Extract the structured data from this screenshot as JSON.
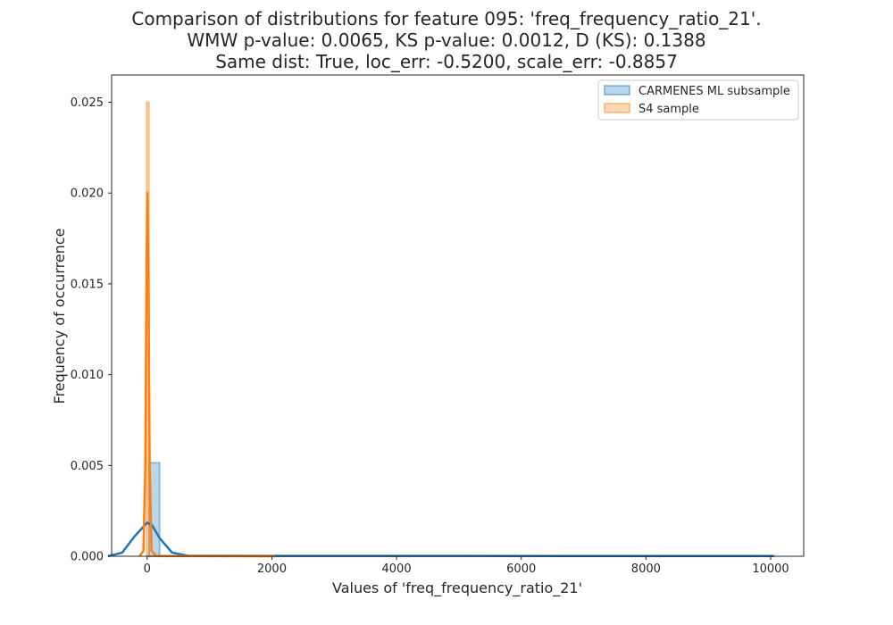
{
  "chart_data": {
    "type": "histogram",
    "title_lines": [
      "Comparison of distributions for feature 095: 'freq_frequency_ratio_21'.",
      "WMW p-value: 0.0065, KS p-value: 0.0012, D (KS): 0.1388",
      "Same dist: True, loc_err: -0.5200, scale_err: -0.8857"
    ],
    "xlabel": "Values of 'freq_frequency_ratio_21'",
    "ylabel": "Frequency of occurrence",
    "xlim": [
      -570,
      10530
    ],
    "ylim": [
      0,
      0.0265
    ],
    "xticks": [
      0,
      2000,
      4000,
      6000,
      8000,
      10000
    ],
    "xtick_labels": [
      "0",
      "2000",
      "4000",
      "6000",
      "8000",
      "10000"
    ],
    "yticks": [
      0,
      0.005,
      0.01,
      0.015,
      0.02,
      0.025
    ],
    "ytick_labels": [
      "0.000",
      "0.005",
      "0.010",
      "0.015",
      "0.020",
      "0.025"
    ],
    "grid": false,
    "legend_position": "top-right",
    "series": [
      {
        "name": "CARMENES ML subsample",
        "color": "#1f77b4",
        "hist_bins": [
          [
            30,
            200,
            0.00515
          ],
          [
            200,
            10050,
            3e-05
          ]
        ],
        "kde": [
          [
            -630,
            0
          ],
          [
            -400,
            0.0002
          ],
          [
            -200,
            0.0011
          ],
          [
            0,
            0.00185
          ],
          [
            80,
            0.0017
          ],
          [
            200,
            0.001
          ],
          [
            400,
            0.0002
          ],
          [
            650,
            3e-05
          ],
          [
            2000,
            2e-05
          ],
          [
            10050,
            1e-05
          ]
        ]
      },
      {
        "name": "S4 sample",
        "color": "#ff7f0e",
        "hist_bins": [
          [
            -10,
            30,
            0.025
          ],
          [
            30,
            2050,
            2e-05
          ]
        ],
        "kde": [
          [
            -120,
            0
          ],
          [
            -60,
            0.0003
          ],
          [
            -30,
            0.005
          ],
          [
            -10,
            0.016
          ],
          [
            5,
            0.02
          ],
          [
            20,
            0.016
          ],
          [
            40,
            0.005
          ],
          [
            70,
            0.0003
          ],
          [
            150,
            1e-05
          ],
          [
            2050,
            0
          ]
        ]
      }
    ]
  }
}
